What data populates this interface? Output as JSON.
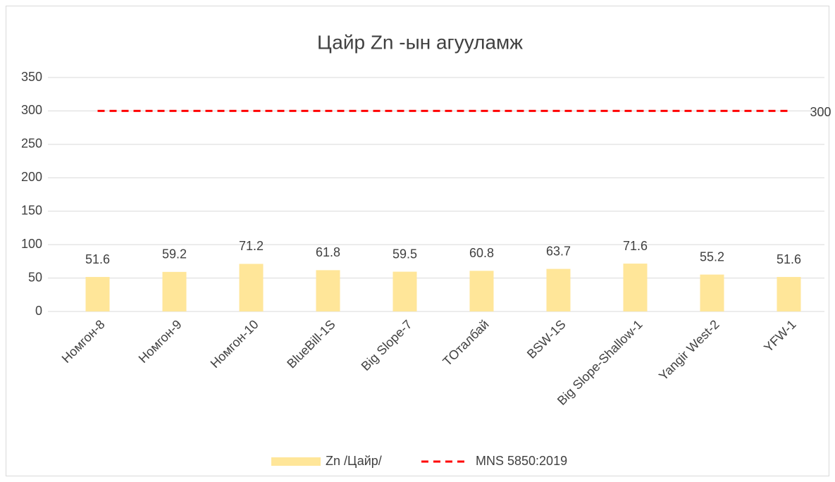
{
  "chart_data": {
    "type": "bar",
    "title": "Цайр Zn -ын агууламж",
    "categories": [
      "Номгон-8",
      "Номгон-9",
      "Номгон-10",
      "BlueBill-1S",
      "Big Slope-7",
      "TОталбай",
      "BSW-1S",
      "Big Slope-Shallow-1",
      "Yangir West-2",
      "YFW-1"
    ],
    "series": [
      {
        "name": "Zn /Цайр/",
        "color": "#ffe699",
        "type": "bar",
        "values": [
          51.6,
          59.2,
          71.2,
          61.8,
          59.5,
          60.8,
          63.7,
          71.6,
          55.2,
          51.6
        ]
      },
      {
        "name": "MNS 5850:2019",
        "color": "#ff0000",
        "type": "line",
        "dashed": true,
        "values": [
          300,
          300,
          300,
          300,
          300,
          300,
          300,
          300,
          300,
          300
        ]
      }
    ],
    "ylim": [
      0,
      350
    ],
    "yticks": [
      0,
      50,
      100,
      150,
      200,
      250,
      300,
      350
    ],
    "grid": true,
    "legend": "bottom"
  }
}
